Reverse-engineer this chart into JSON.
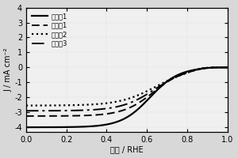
{
  "xlabel": "电位 / RHE",
  "ylabel": "J / mA cm⁻²",
  "xlim": [
    0.0,
    1.0
  ],
  "ylim": [
    -4.3,
    4.0
  ],
  "yticks": [
    -4,
    -3,
    -2,
    -1,
    0,
    1,
    2,
    3,
    4
  ],
  "xticks": [
    0.0,
    0.2,
    0.4,
    0.6,
    0.8,
    1.0
  ],
  "legend_labels": [
    "实施奡1",
    "对比奡1",
    "对比奡2",
    "对比奡3"
  ],
  "background_color": "#d8d8d8",
  "plot_bg_color": "#f0f0f0"
}
